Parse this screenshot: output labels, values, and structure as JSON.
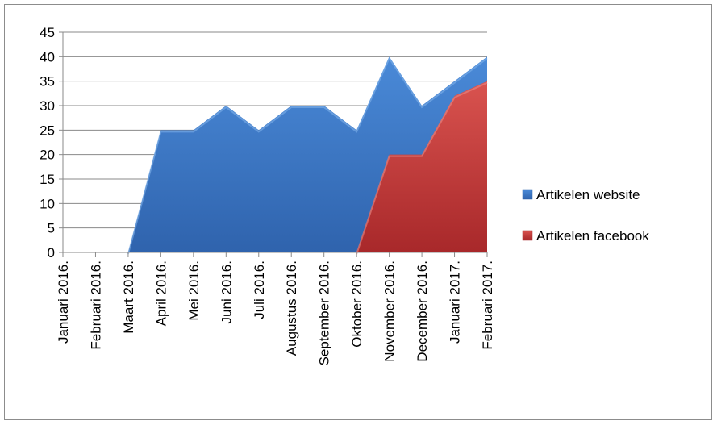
{
  "chart_data": {
    "type": "area",
    "categories": [
      "Januari 2016.",
      "Februari 2016.",
      "Maart 2016.",
      "April 2016.",
      "Mei 2016.",
      "Juni 2016.",
      "Juli 2016.",
      "Augustus 2016.",
      "September 2016.",
      "Oktober 2016.",
      "November 2016.",
      "December 2016.",
      "Januari 2017.",
      "Februari 2017."
    ],
    "series": [
      {
        "name": "Artikelen website",
        "values": [
          0,
          0,
          0,
          25,
          25,
          30,
          25,
          30,
          30,
          25,
          40,
          30,
          35,
          40
        ],
        "color": "#3a78c8"
      },
      {
        "name": "Artikelen facebook",
        "values": [
          0,
          0,
          0,
          0,
          0,
          0,
          0,
          0,
          0,
          0,
          20,
          20,
          32,
          35
        ],
        "color": "#c0393b"
      }
    ],
    "ylim": [
      0,
      45
    ],
    "yticks": [
      0,
      5,
      10,
      15,
      20,
      25,
      30,
      35,
      40,
      45
    ],
    "grid": true,
    "legend_position": "right",
    "title": "",
    "xlabel": "",
    "ylabel": ""
  }
}
